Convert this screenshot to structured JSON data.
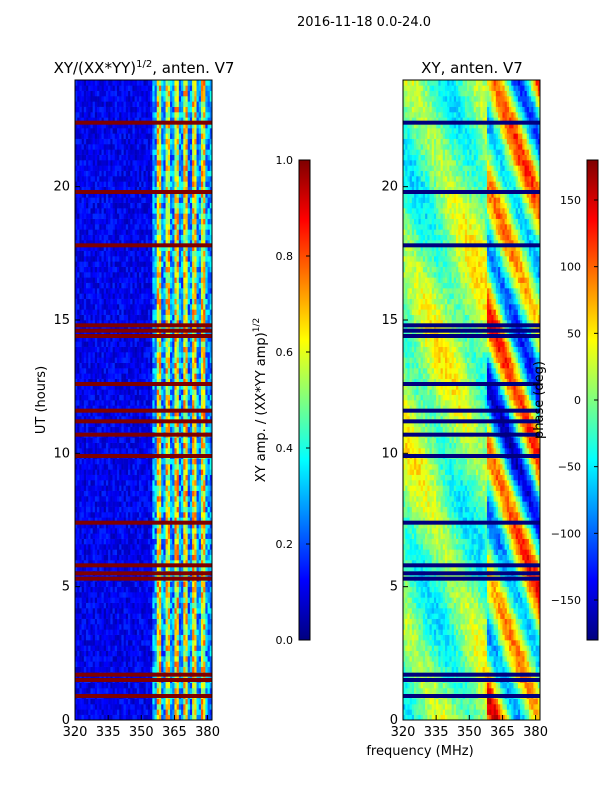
{
  "suptitle": "2016-11-18 0.0-24.0",
  "colors": {
    "jet": [
      "#00007f",
      "#0000ff",
      "#007fff",
      "#00ffff",
      "#7fff7f",
      "#ffff00",
      "#ff7f00",
      "#ff0000",
      "#7f0000"
    ],
    "flag_row": "#7f0000",
    "text": "#000000"
  },
  "chart_data": [
    {
      "type": "heatmap",
      "title_main": "XY/(XX*YY)",
      "title_sup": "1/2",
      "title_tail": ", anten. V7",
      "xlabel": "",
      "ylabel": "UT (hours)",
      "xlim": [
        320,
        382
      ],
      "ylim": [
        0,
        24
      ],
      "xticks": [
        320,
        335,
        350,
        365,
        380
      ],
      "yticks": [
        0,
        5,
        10,
        15,
        20
      ],
      "colorbar": {
        "label_main": "XY amp. / (XX*YY amp)",
        "label_sup": "1/2",
        "range": [
          0.0,
          1.0
        ],
        "ticks": [
          "0.0",
          "0.2",
          "0.4",
          "0.6",
          "0.8",
          "1.0"
        ],
        "tick_values": [
          0.0,
          0.2,
          0.4,
          0.6,
          0.8,
          1.0
        ]
      },
      "flagged_hours": [
        0.9,
        1.5,
        1.7,
        5.3,
        5.5,
        5.8,
        7.4,
        9.9,
        10.7,
        11.2,
        11.6,
        12.6,
        14.4,
        14.6,
        14.8,
        17.8,
        19.8,
        22.4
      ],
      "bright_channels_mhz": [
        [
          357,
          359
        ],
        [
          361,
          363
        ],
        [
          365,
          367
        ],
        [
          369,
          371
        ],
        [
          373,
          375
        ],
        [
          377,
          379
        ]
      ]
    },
    {
      "type": "heatmap",
      "title": "XY, anten. V7",
      "xlabel": "frequency (MHz)",
      "ylabel": "",
      "xlim": [
        320,
        382
      ],
      "ylim": [
        0,
        24
      ],
      "xticks": [
        320,
        335,
        350,
        365,
        380
      ],
      "yticks": [
        0,
        5,
        10,
        15,
        20
      ],
      "colorbar": {
        "label": "phase (deg)",
        "range": [
          -180,
          180
        ],
        "ticks": [
          "150",
          "100",
          "50",
          "0",
          "−50",
          "−100",
          "−150"
        ],
        "tick_values": [
          150,
          100,
          50,
          0,
          -50,
          -100,
          -150
        ]
      },
      "flagged_hours": [
        0.9,
        1.5,
        1.7,
        5.3,
        5.5,
        5.8,
        7.4,
        9.9,
        10.7,
        11.2,
        11.6,
        12.6,
        14.4,
        14.6,
        14.8,
        17.8,
        19.8,
        22.4
      ]
    }
  ]
}
